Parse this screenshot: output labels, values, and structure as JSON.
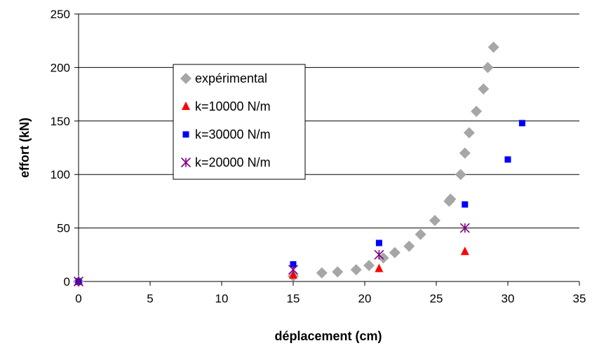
{
  "chart_data": {
    "type": "scatter",
    "title": "",
    "xlabel": "déplacement (cm)",
    "ylabel": "effort (kN)",
    "xlim": [
      0,
      35
    ],
    "ylim": [
      0,
      250
    ],
    "xticks": [
      0,
      5,
      10,
      15,
      20,
      25,
      30,
      35
    ],
    "yticks": [
      0,
      50,
      100,
      150,
      200,
      250
    ],
    "grid": "horizontal",
    "legend_position": "inside-left",
    "series": [
      {
        "name": "expérimental",
        "marker": "diamond",
        "color": "#a6a6a6",
        "x": [
          0,
          15,
          17,
          18.1,
          19.4,
          20.3,
          21.3,
          22.1,
          23.1,
          23.9,
          24.9,
          25.9,
          26.0,
          26.7,
          27.0,
          27.3,
          27.8,
          28.3,
          28.6,
          29.0
        ],
        "y": [
          0,
          5,
          8,
          9,
          11,
          15,
          22,
          27,
          33,
          44,
          57,
          75,
          77,
          100,
          120,
          139,
          159,
          180,
          200,
          219
        ]
      },
      {
        "name": "k=10000 N/m",
        "marker": "triangle",
        "color": "#ff0000",
        "x": [
          0,
          15,
          21,
          27
        ],
        "y": [
          0,
          6,
          12,
          28
        ]
      },
      {
        "name": "k=30000 N/m",
        "marker": "square",
        "color": "#0000ff",
        "x": [
          0,
          15,
          21,
          27,
          30,
          31
        ],
        "y": [
          0,
          16,
          36,
          72,
          114,
          148
        ]
      },
      {
        "name": "k=20000 N/m",
        "marker": "asterisk",
        "color": "#800080",
        "x": [
          0,
          15,
          21,
          27
        ],
        "y": [
          0,
          11,
          25,
          50
        ]
      }
    ]
  }
}
